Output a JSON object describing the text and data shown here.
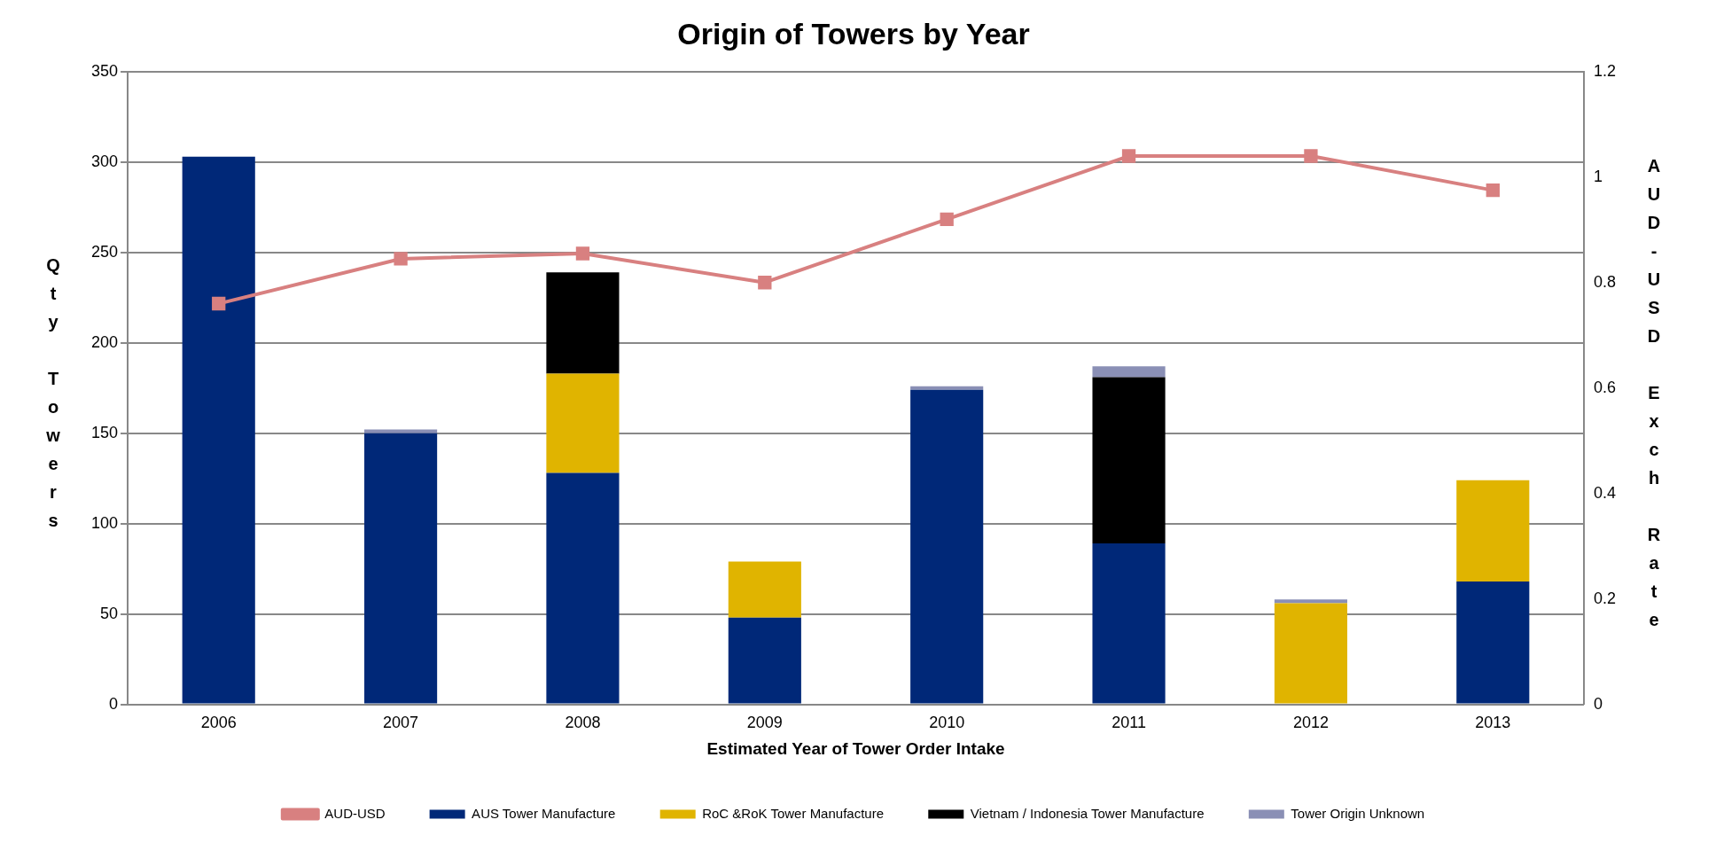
{
  "chart_data": {
    "type": "bar",
    "title": "Origin of Towers by Year",
    "xlabel": "Estimated Year of Tower Order Intake",
    "ylabel": "Qty Towers",
    "y2label": "AUD-USD Exch Rate",
    "categories": [
      "2006",
      "2007",
      "2008",
      "2009",
      "2010",
      "2011",
      "2012",
      "2013"
    ],
    "stacked": true,
    "grid": "y",
    "legend": "bottom",
    "ylim": [
      0,
      350
    ],
    "yticks": [
      0,
      50,
      100,
      150,
      200,
      250,
      300,
      350
    ],
    "y2lim": [
      0,
      1.2
    ],
    "y2ticks": [
      0,
      0.2,
      0.4,
      0.6,
      0.8,
      1,
      1.2
    ],
    "series": [
      {
        "name": "AUS Tower Manufacture",
        "color": "#002878",
        "values": [
          303,
          150,
          128,
          48,
          174,
          89,
          0,
          68
        ]
      },
      {
        "name": "RoC &RoK Tower Manufacture",
        "color": "#e0b400",
        "values": [
          0,
          0,
          55,
          31,
          0,
          0,
          56,
          56
        ]
      },
      {
        "name": "Vietnam / Indonesia Tower Manufacture",
        "color": "#000000",
        "values": [
          0,
          0,
          56,
          0,
          0,
          92,
          0,
          0
        ]
      },
      {
        "name": "Tower Origin Unknown",
        "color": "#8a8fb5",
        "values": [
          0,
          2,
          0,
          0,
          2,
          6,
          2,
          0
        ]
      },
      {
        "name": "AUD-USD",
        "type": "line",
        "axis": "y2",
        "marker": "square",
        "color": "#d88080",
        "values": [
          0.76,
          0.845,
          0.855,
          0.8,
          0.92,
          1.04,
          1.04,
          0.975
        ]
      }
    ]
  }
}
